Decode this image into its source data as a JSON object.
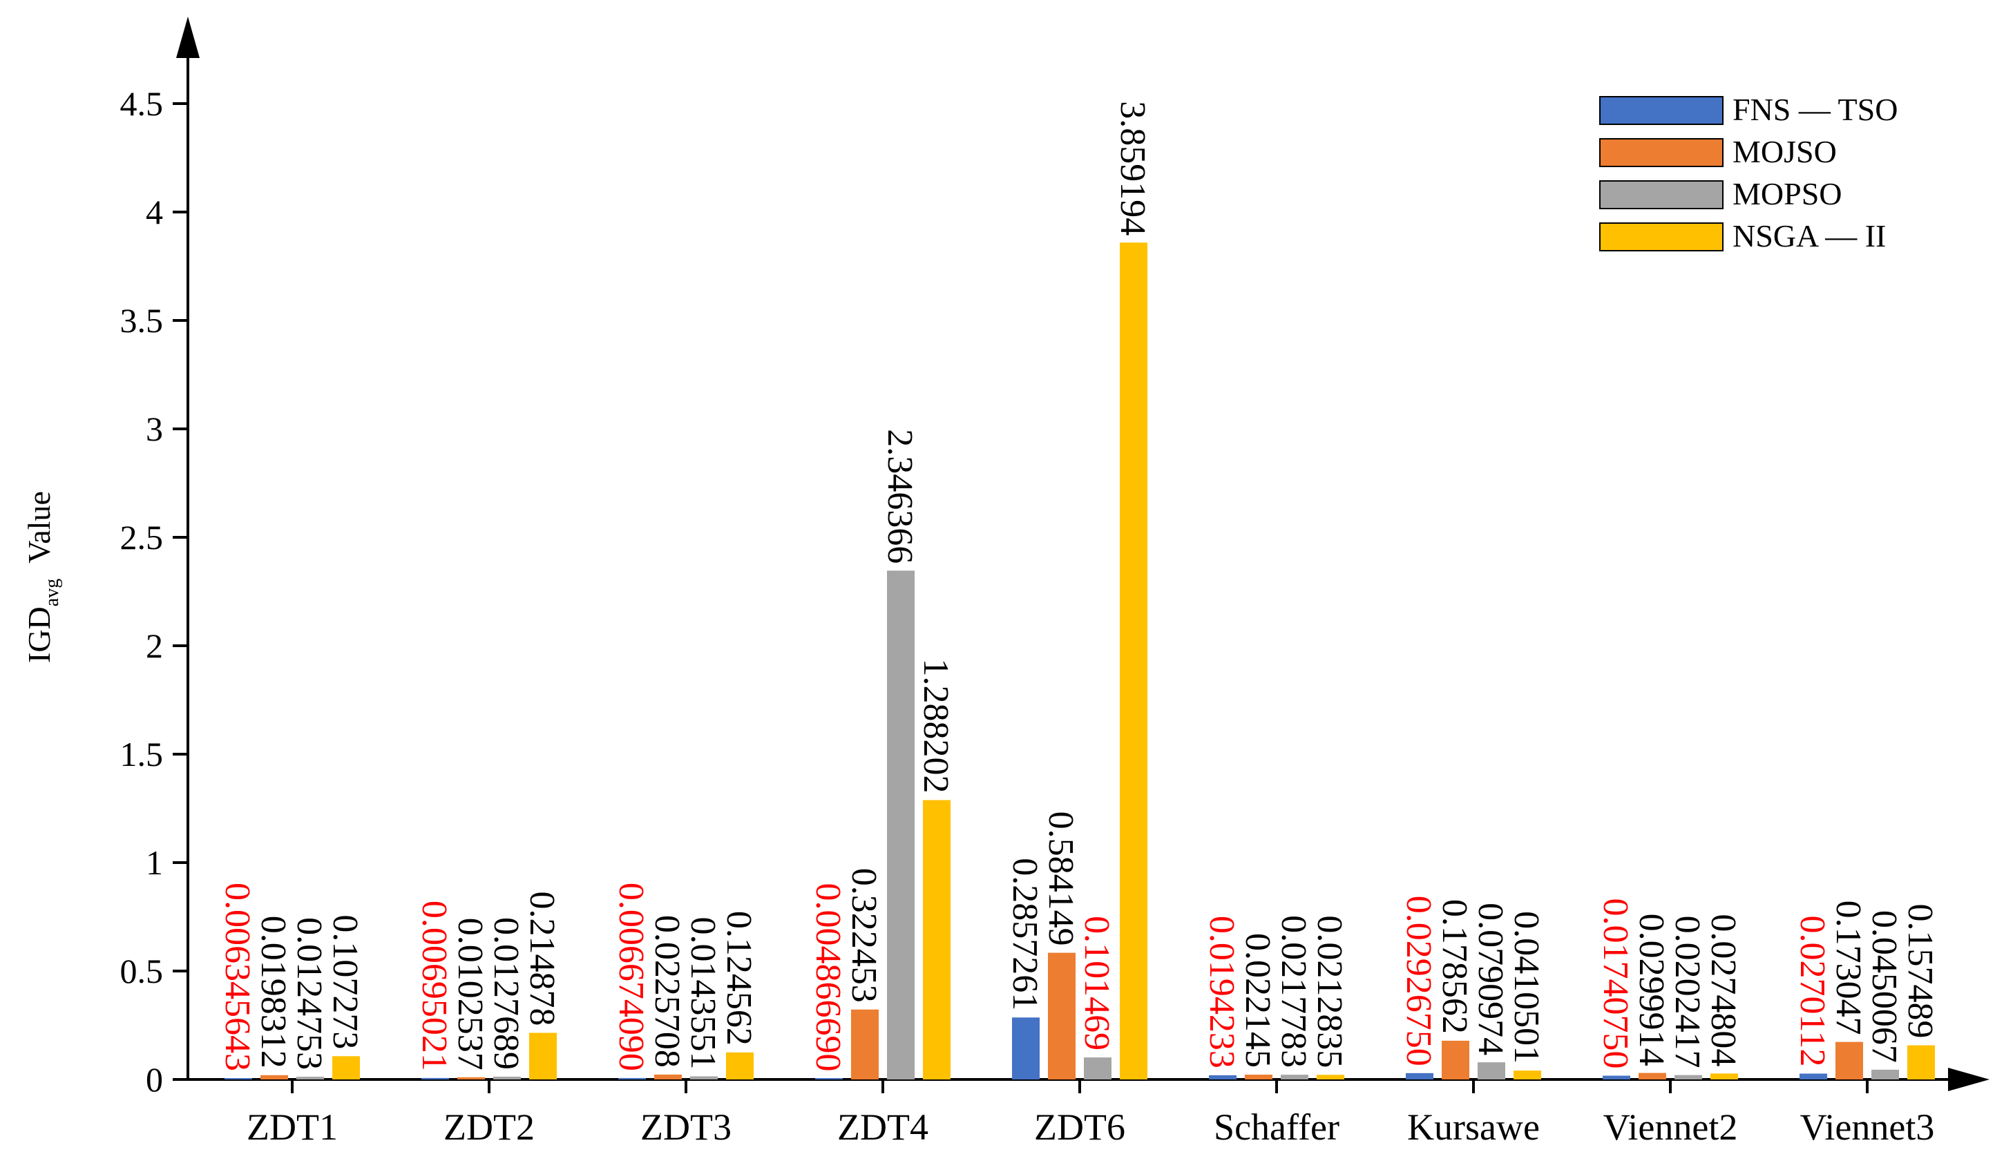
{
  "chart_data": {
    "type": "bar",
    "ylabel": {
      "main": "IGD",
      "sub": "avg",
      "suffix": "Value"
    },
    "ylim": [
      0,
      4.5
    ],
    "yticks": [
      "0",
      "0.5",
      "1",
      "1.5",
      "2",
      "2.5",
      "3",
      "3.5",
      "4",
      "4.5"
    ],
    "grid": false,
    "legend_position": "top-right",
    "categories": [
      "ZDT1",
      "ZDT2",
      "ZDT3",
      "ZDT4",
      "ZDT6",
      "Schaffer",
      "Kursawe",
      "Viennet2",
      "Viennet3"
    ],
    "series": [
      {
        "name": "FNS — TSO",
        "color": "#4472C4",
        "values": [
          0.006345643,
          0.00695021,
          0.00667409,
          0.00486669,
          0.2857261,
          0.0194233,
          0.0292675,
          0.0174075,
          0.0270112
        ],
        "labels": [
          "0.006345643",
          "0.00695021",
          "0.006674090",
          "0.004866690",
          "0.2857261",
          "0.0194233",
          "0.02926750",
          "0.01740750",
          "0.0270112"
        ]
      },
      {
        "name": "MOJSO",
        "color": "#ED7D31",
        "values": [
          0.0198312,
          0.0102537,
          0.0225708,
          0.322453,
          0.584149,
          0.022145,
          0.178562,
          0.0299914,
          0.173047
        ],
        "labels": [
          "0.0198312",
          "0.0102537",
          "0.0225708",
          "0.322453",
          "0.584149",
          "0.022145",
          "0.178562",
          "0.0299914",
          "0.173047"
        ]
      },
      {
        "name": "MOPSO",
        "color": "#A5A5A5",
        "values": [
          0.0124753,
          0.0127689,
          0.0143551,
          2.346366,
          0.101469,
          0.0217783,
          0.0790974,
          0.0202417,
          0.0450067
        ],
        "labels": [
          "0.0124753",
          "0.0127689",
          "0.0143551",
          "2.346366",
          "0.101469",
          "0.0217783",
          "0.0790974",
          "0.0202417",
          "0.0450067"
        ]
      },
      {
        "name": "NSGA — II",
        "color": "#FFC000",
        "values": [
          0.107273,
          0.214878,
          0.124562,
          1.288202,
          3.859194,
          0.0212835,
          0.0410501,
          0.0274804,
          0.157489
        ],
        "labels": [
          "0.107273",
          "0.214878",
          "0.124562",
          "1.288202",
          "3.859194",
          "0.0212835",
          "0.0410501",
          "0.0274804",
          "0.157489"
        ]
      }
    ],
    "label_colors": {
      "best": "#FF0000",
      "normal": "#000000",
      "best_series_index": [
        0,
        0,
        0,
        0,
        2,
        0,
        0,
        0,
        0
      ]
    }
  }
}
